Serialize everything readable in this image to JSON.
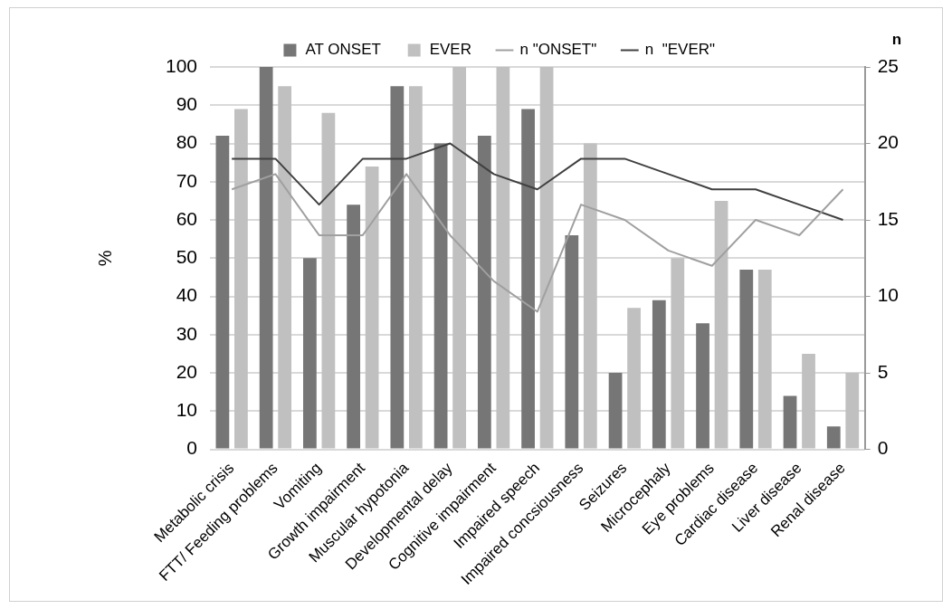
{
  "chart_data": {
    "type": "bar",
    "categories": [
      "Metabolic crisis",
      "FTT/ Feeding problems",
      "Vomiting",
      "Growth impairment",
      "Muscular hypotonia",
      "Developmental delay",
      "Cognitive impairment",
      "Impaired speech",
      "Impaired concsiousness",
      "Seizures",
      "Microcephaly",
      "Eye problems",
      "Cardiac disease",
      "Liver disease",
      "Renal disease"
    ],
    "series": [
      {
        "name": "AT ONSET",
        "color": "#767676",
        "values": [
          82,
          100,
          50,
          64,
          95,
          80,
          82,
          89,
          56,
          20,
          39,
          33,
          47,
          14,
          6
        ]
      },
      {
        "name": "EVER",
        "color": "#c0c0c0",
        "values": [
          89,
          95,
          88,
          74,
          95,
          100,
          100,
          100,
          80,
          37,
          50,
          65,
          47,
          25,
          20
        ]
      },
      {
        "name": "n \"ONSET\"",
        "type": "line",
        "axis": "y2",
        "color": "#a0a0a0",
        "values": [
          17,
          18,
          14,
          14,
          18,
          14,
          11,
          9,
          16,
          15,
          13,
          12,
          15,
          14,
          17
        ]
      },
      {
        "name": "n  \"EVER\"",
        "type": "line",
        "axis": "y2",
        "color": "#404040",
        "values": [
          19,
          19,
          16,
          19,
          19,
          20,
          18,
          17,
          19,
          19,
          18,
          17,
          17,
          16,
          15
        ]
      }
    ],
    "ylabel": "%",
    "y2label": "n",
    "ylim": [
      0,
      100
    ],
    "yticks": [
      0,
      10,
      20,
      30,
      40,
      50,
      60,
      70,
      80,
      90,
      100
    ],
    "y2lim": [
      0,
      25
    ],
    "y2ticks": [
      0,
      5,
      10,
      15,
      20,
      25
    ],
    "grid": "y",
    "legend": "top",
    "marker": "none",
    "line_style": "solid"
  }
}
